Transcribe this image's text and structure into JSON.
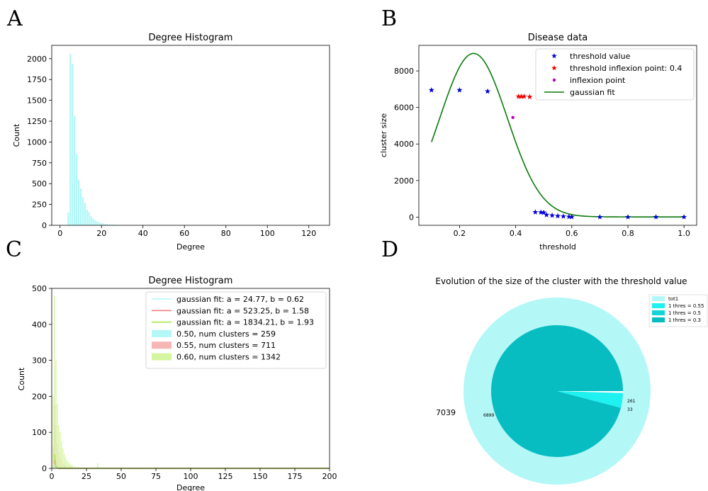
{
  "panels": {
    "a": "A",
    "b": "B",
    "c": "C",
    "d": "D"
  },
  "colors": {
    "cyan": "#b3f7f7",
    "green": "#0a7a0a",
    "blue": "#0000dd",
    "red": "#ee0000",
    "magenta": "#bb00bb",
    "pink": "#f7b6b6",
    "lime": "#c8f27a",
    "teal": "#07bdc1",
    "aqua": "#1ff0f0"
  },
  "chart_data": [
    {
      "id": "A",
      "type": "bar",
      "title": "Degree Histogram",
      "xlabel": "Degree",
      "ylabel": "Count",
      "xlim": [
        -4,
        130
      ],
      "ylim": [
        0,
        2160
      ],
      "xticks": [
        0,
        20,
        40,
        60,
        80,
        100,
        120
      ],
      "yticks": [
        0,
        250,
        500,
        750,
        1000,
        1250,
        1500,
        1750,
        2000
      ],
      "bar_width": 0.8,
      "x": [
        4,
        5,
        6,
        7,
        8,
        9,
        10,
        11,
        12,
        13,
        14,
        15,
        16,
        17,
        18,
        19,
        20,
        21,
        22,
        23,
        24,
        25,
        26,
        27,
        28,
        29,
        30
      ],
      "values": [
        150,
        2060,
        1940,
        1310,
        860,
        550,
        440,
        340,
        270,
        190,
        160,
        110,
        80,
        60,
        45,
        35,
        25,
        20,
        15,
        12,
        10,
        8,
        6,
        5,
        4,
        3,
        2
      ]
    },
    {
      "id": "B",
      "type": "scatter",
      "title": "Disease data",
      "xlabel": "threshold",
      "ylabel": "cluster size",
      "xlim": [
        0.055,
        1.045
      ],
      "ylim": [
        -450,
        9400
      ],
      "xticks": [
        0.2,
        0.4,
        0.6,
        0.8,
        1.0
      ],
      "xtick_labels": [
        "0.2",
        "0.4",
        "0.6",
        "0.8",
        "1.0"
      ],
      "yticks": [
        0,
        2000,
        4000,
        6000,
        8000
      ],
      "legend_position": "top-right",
      "series": [
        {
          "name": "threshold value",
          "marker": "star",
          "color": "#0000dd",
          "x": [
            0.1,
            0.2,
            0.3,
            0.47,
            0.49,
            0.5,
            0.51,
            0.53,
            0.55,
            0.57,
            0.59,
            0.6,
            0.7,
            0.8,
            0.9,
            1.0
          ],
          "y": [
            6950,
            6950,
            6880,
            270,
            260,
            250,
            120,
            90,
            60,
            40,
            20,
            10,
            5,
            5,
            5,
            5
          ]
        },
        {
          "name": "threshold inflexion point: 0.4",
          "marker": "star",
          "color": "#ee0000",
          "x": [
            0.41,
            0.42,
            0.43,
            0.45
          ],
          "y": [
            6600,
            6600,
            6600,
            6580
          ]
        },
        {
          "name": "inflexion point",
          "marker": "dot",
          "color": "#bb00bb",
          "x": [
            0.39
          ],
          "y": [
            5450
          ]
        },
        {
          "name": "gaussian fit",
          "marker": "line",
          "color": "#0a7a0a",
          "curve": {
            "a": 8950,
            "mu": 0.25,
            "sigma": 0.12,
            "c": 10,
            "x_from": 0.1,
            "x_to": 1.0
          }
        }
      ]
    },
    {
      "id": "C",
      "type": "bar",
      "title": "Degree Histogram",
      "xlabel": "Degree",
      "ylabel": "Count",
      "xlim": [
        0,
        200
      ],
      "ylim": [
        0,
        500
      ],
      "xticks": [
        0,
        25,
        50,
        75,
        100,
        125,
        150,
        175,
        200
      ],
      "yticks": [
        0,
        100,
        200,
        300,
        400,
        500
      ],
      "legend_position": "top-right",
      "series": [
        {
          "name": "gaussian fit: a = 24.77, b = 0.62",
          "kind": "line",
          "color": "#b3f7f7",
          "a": 24.77,
          "b": 0.62
        },
        {
          "name": "gaussian fit: a = 523.25, b = 1.58",
          "kind": "line",
          "color": "#f08080",
          "a": 523.25,
          "b": 1.58
        },
        {
          "name": "gaussian fit: a = 1834.21, b = 1.93",
          "kind": "line",
          "color": "#a8e84a",
          "a": 1834.21,
          "b": 1.93
        },
        {
          "name": "0.50, num clusters = 259",
          "kind": "bar",
          "color": "#b3f7f7",
          "x": [
            1,
            2,
            3,
            4,
            5,
            6,
            8,
            10,
            15,
            20,
            33
          ],
          "values": [
            60,
            40,
            22,
            12,
            8,
            5,
            3,
            2,
            1,
            1,
            12
          ]
        },
        {
          "name": "0.55, num clusters = 711",
          "kind": "bar",
          "color": "#f7b6b6",
          "x": [
            1,
            2,
            3,
            4,
            5,
            6,
            7,
            8,
            9,
            10,
            12,
            14,
            16,
            20
          ],
          "values": [
            60,
            175,
            120,
            70,
            45,
            30,
            20,
            14,
            10,
            7,
            4,
            3,
            2,
            1
          ]
        },
        {
          "name": "0.60, num clusters = 1342",
          "kind": "bar",
          "color": "#d6f5a0",
          "x": [
            1,
            2,
            3,
            4,
            5,
            6,
            7,
            8,
            9,
            10,
            11,
            12,
            13,
            14,
            15,
            17,
            19,
            21,
            24,
            28,
            33
          ],
          "values": [
            200,
            480,
            300,
            180,
            120,
            100,
            75,
            55,
            40,
            30,
            22,
            17,
            13,
            10,
            8,
            6,
            4,
            3,
            2,
            1,
            15
          ]
        }
      ]
    },
    {
      "id": "D",
      "type": "pie",
      "title": "Evolution of the size of the cluster with the threshold value",
      "legend_position": "top-right",
      "legend": [
        "tot1",
        "1 thres = 0.55",
        "1 thres = 0.5",
        "1 thres = 0.3"
      ],
      "outer": {
        "label": "7039",
        "values": [
          7039
        ]
      },
      "inner": {
        "labels": [
          "6899",
          "261",
          "33"
        ],
        "values": [
          6899,
          261,
          33
        ]
      }
    }
  ]
}
